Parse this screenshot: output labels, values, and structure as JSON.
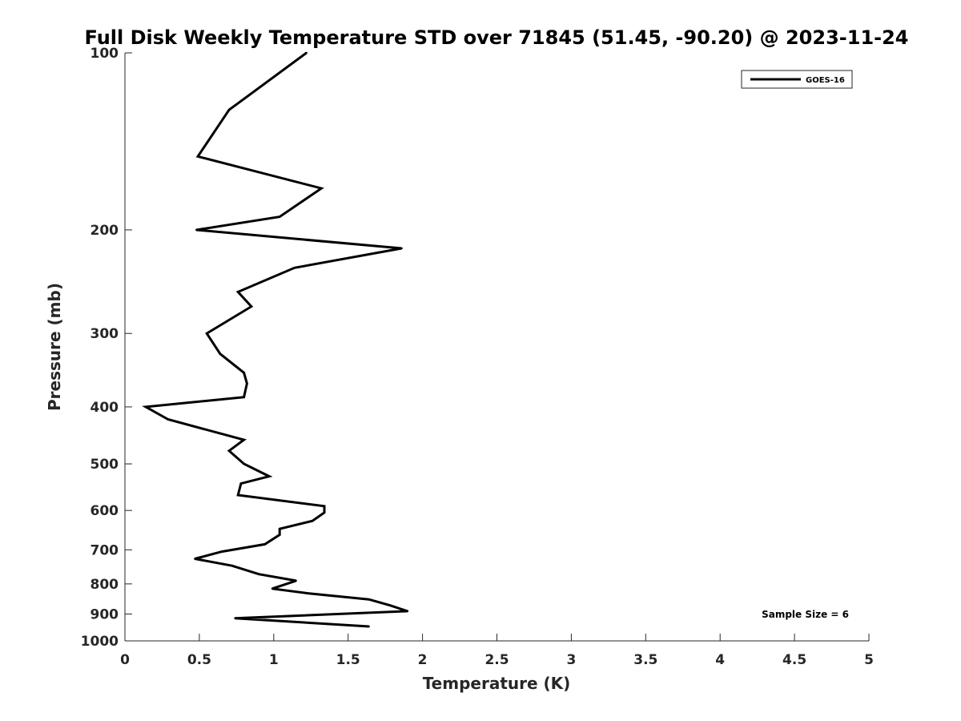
{
  "chart_data": {
    "type": "line",
    "title": "Full Disk Weekly Temperature STD over 71845 (51.45, -90.20) @ 2023-11-24",
    "xlabel": "Temperature (K)",
    "ylabel": "Pressure (mb)",
    "xlim": [
      0,
      5
    ],
    "ylim": [
      100,
      1000
    ],
    "y_scale": "log",
    "y_reversed": true,
    "x_ticks": [
      "0",
      "0.5",
      "1",
      "1.5",
      "2",
      "2.5",
      "3",
      "3.5",
      "4",
      "4.5",
      "5"
    ],
    "y_ticks": [
      "100",
      "200",
      "300",
      "400",
      "500",
      "600",
      "700",
      "800",
      "900",
      "1000"
    ],
    "grid": false,
    "legend": {
      "position": "top-right",
      "entries": [
        "GOES-16"
      ]
    },
    "annotation": "Sample Size = 6",
    "series": [
      {
        "name": "GOES-16",
        "color": "#000000",
        "points": [
          [
            1.22,
            100
          ],
          [
            0.7,
            125
          ],
          [
            0.49,
            150
          ],
          [
            1.32,
            170
          ],
          [
            1.04,
            190
          ],
          [
            0.48,
            200
          ],
          [
            1.86,
            215
          ],
          [
            1.14,
            232
          ],
          [
            0.76,
            255
          ],
          [
            0.85,
            270
          ],
          [
            0.55,
            300
          ],
          [
            0.64,
            325
          ],
          [
            0.8,
            350
          ],
          [
            0.82,
            365
          ],
          [
            0.8,
            385
          ],
          [
            0.14,
            400
          ],
          [
            0.29,
            420
          ],
          [
            0.8,
            455
          ],
          [
            0.7,
            475
          ],
          [
            0.8,
            500
          ],
          [
            0.97,
            525
          ],
          [
            0.78,
            540
          ],
          [
            0.76,
            565
          ],
          [
            1.34,
            590
          ],
          [
            1.34,
            605
          ],
          [
            1.26,
            625
          ],
          [
            1.04,
            645
          ],
          [
            1.04,
            660
          ],
          [
            0.94,
            685
          ],
          [
            0.65,
            705
          ],
          [
            0.47,
            725
          ],
          [
            0.72,
            745
          ],
          [
            0.9,
            770
          ],
          [
            1.15,
            790
          ],
          [
            0.99,
            815
          ],
          [
            1.23,
            830
          ],
          [
            1.64,
            850
          ],
          [
            1.78,
            870
          ],
          [
            1.9,
            890
          ],
          [
            0.74,
            915
          ],
          [
            1.64,
            945
          ]
        ]
      }
    ]
  }
}
